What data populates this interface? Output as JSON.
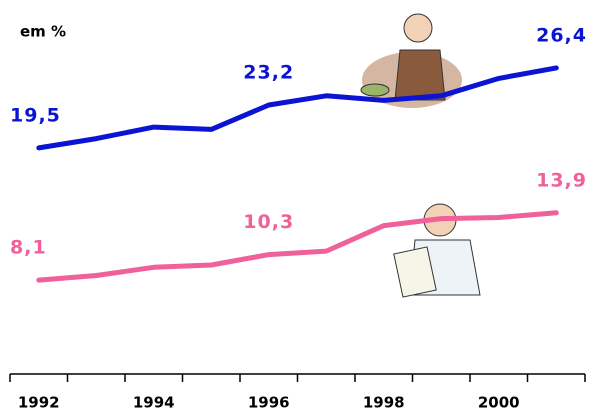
{
  "chart_data": {
    "type": "line",
    "unit_label": "em %",
    "categories": [
      "1992",
      null,
      "1994",
      null,
      "1996",
      null,
      "1998",
      null,
      "2000",
      null
    ],
    "series": [
      {
        "color": "#0a14d2",
        "values": [
          19.5,
          20.3,
          21.3,
          21.1,
          23.2,
          24.0,
          23.6,
          24.0,
          25.5,
          26.4
        ],
        "value_labels": [
          "19,5",
          null,
          null,
          null,
          "23,2",
          null,
          null,
          null,
          null,
          "26,4"
        ]
      },
      {
        "color": "#f0609a",
        "values": [
          8.1,
          8.5,
          9.2,
          9.4,
          10.3,
          10.6,
          12.8,
          13.4,
          13.5,
          13.9
        ],
        "value_labels": [
          "8,1",
          null,
          null,
          null,
          "10,3",
          null,
          null,
          null,
          null,
          "13,9"
        ]
      }
    ],
    "ylim": [
      0,
      32
    ]
  }
}
